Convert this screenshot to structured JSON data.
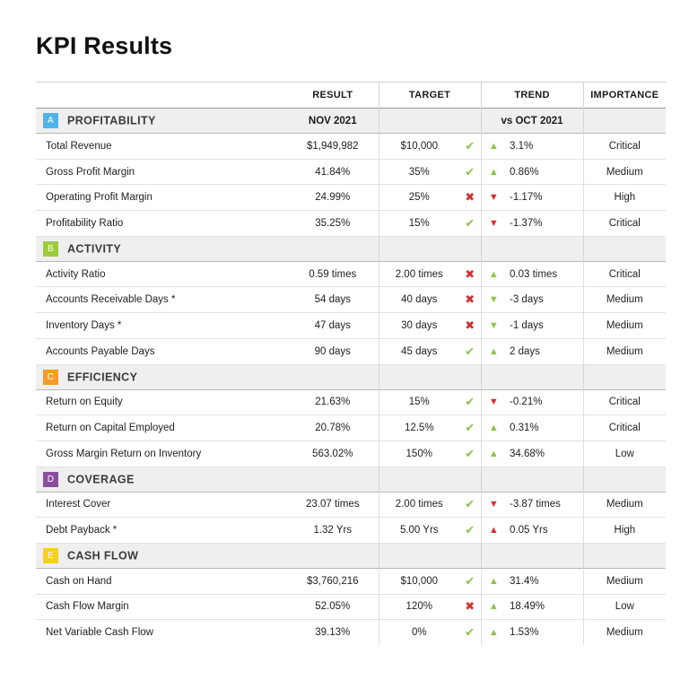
{
  "title": "KPI Results",
  "headers": {
    "result": "RESULT",
    "target": "TARGET",
    "trend": "TREND",
    "importance": "IMPORTANCE"
  },
  "colors": {
    "A": "#4fb3e8",
    "B": "#9ccc3c",
    "C": "#f39c2c",
    "D": "#8e4e9e",
    "E": "#f5d01e",
    "tick": "#8bc34a",
    "cross": "#d32f2f"
  },
  "sections": [
    {
      "badge": "A",
      "name": "PROFITABILITY",
      "result_header": "NOV 2021",
      "trend_header": "vs OCT 2021",
      "rows": [
        {
          "name": "Total Revenue",
          "result": "$1,949,982",
          "target": "$10,000",
          "status": "tick",
          "arrow": "up-green",
          "trend": "3.1%",
          "importance": "Critical"
        },
        {
          "name": "Gross Profit Margin",
          "result": "41.84%",
          "target": "35%",
          "status": "tick",
          "arrow": "up-green",
          "trend": "0.86%",
          "importance": "Medium"
        },
        {
          "name": "Operating Profit Margin",
          "result": "24.99%",
          "target": "25%",
          "status": "cross",
          "arrow": "down-red",
          "trend": "-1.17%",
          "importance": "High"
        },
        {
          "name": "Profitability Ratio",
          "result": "35.25%",
          "target": "15%",
          "status": "tick",
          "arrow": "down-red",
          "trend": "-1.37%",
          "importance": "Critical"
        }
      ]
    },
    {
      "badge": "B",
      "name": "ACTIVITY",
      "result_header": "",
      "trend_header": "",
      "rows": [
        {
          "name": "Activity Ratio",
          "result": "0.59 times",
          "target": "2.00 times",
          "status": "cross",
          "arrow": "up-green",
          "trend": "0.03 times",
          "importance": "Critical"
        },
        {
          "name": "Accounts Receivable Days *",
          "result": "54 days",
          "target": "40 days",
          "status": "cross",
          "arrow": "down-green",
          "trend": "-3 days",
          "importance": "Medium"
        },
        {
          "name": "Inventory Days *",
          "result": "47 days",
          "target": "30 days",
          "status": "cross",
          "arrow": "down-green",
          "trend": "-1 days",
          "importance": "Medium"
        },
        {
          "name": "Accounts Payable Days",
          "result": "90 days",
          "target": "45 days",
          "status": "tick",
          "arrow": "up-green",
          "trend": "2 days",
          "importance": "Medium"
        }
      ]
    },
    {
      "badge": "C",
      "name": "EFFICIENCY",
      "result_header": "",
      "trend_header": "",
      "rows": [
        {
          "name": "Return on Equity",
          "result": "21.63%",
          "target": "15%",
          "status": "tick",
          "arrow": "down-red",
          "trend": "-0.21%",
          "importance": "Critical"
        },
        {
          "name": "Return on Capital Employed",
          "result": "20.78%",
          "target": "12.5%",
          "status": "tick",
          "arrow": "up-green",
          "trend": "0.31%",
          "importance": "Critical"
        },
        {
          "name": "Gross Margin Return on Inventory",
          "result": "563.02%",
          "target": "150%",
          "status": "tick",
          "arrow": "up-green",
          "trend": "34.68%",
          "importance": "Low"
        }
      ]
    },
    {
      "badge": "D",
      "name": "COVERAGE",
      "result_header": "",
      "trend_header": "",
      "rows": [
        {
          "name": "Interest Cover",
          "result": "23.07 times",
          "target": "2.00 times",
          "status": "tick",
          "arrow": "down-red",
          "trend": "-3.87 times",
          "importance": "Medium"
        },
        {
          "name": "Debt Payback *",
          "result": "1.32 Yrs",
          "target": "5.00 Yrs",
          "status": "tick",
          "arrow": "up-red",
          "trend": "0.05 Yrs",
          "importance": "High"
        }
      ]
    },
    {
      "badge": "E",
      "name": "CASH FLOW",
      "result_header": "",
      "trend_header": "",
      "rows": [
        {
          "name": "Cash on Hand",
          "result": "$3,760,216",
          "target": "$10,000",
          "status": "tick",
          "arrow": "up-green",
          "trend": "31.4%",
          "importance": "Medium"
        },
        {
          "name": "Cash Flow Margin",
          "result": "52.05%",
          "target": "120%",
          "status": "cross",
          "arrow": "up-green",
          "trend": "18.49%",
          "importance": "Low"
        },
        {
          "name": "Net Variable Cash Flow",
          "result": "39.13%",
          "target": "0%",
          "status": "tick",
          "arrow": "up-green",
          "trend": "1.53%",
          "importance": "Medium"
        }
      ]
    }
  ]
}
